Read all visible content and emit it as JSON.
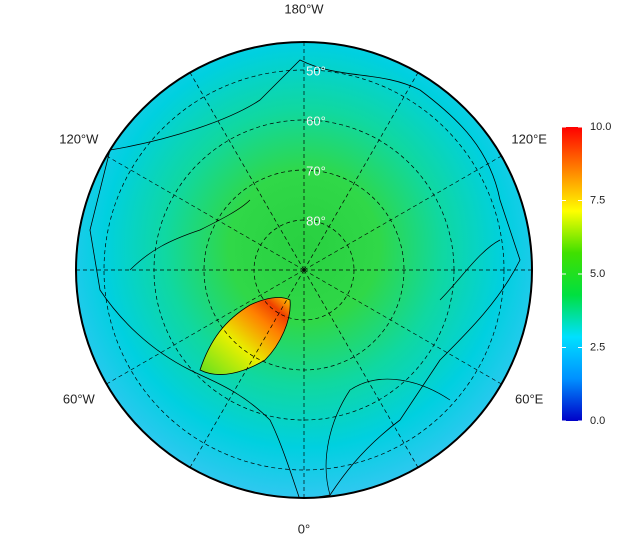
{
  "map": {
    "longitude_labels": [
      {
        "value": -180,
        "label": "180°W"
      },
      {
        "value": -120,
        "label": "120°W"
      },
      {
        "value": 120,
        "label": "120°E"
      },
      {
        "value": -60,
        "label": "60°W"
      },
      {
        "value": 60,
        "label": "60°E"
      },
      {
        "value": 0,
        "label": "0°"
      }
    ],
    "latitude_labels": [
      {
        "value": 50,
        "label": "50°"
      },
      {
        "value": 60,
        "label": "60°"
      },
      {
        "value": 70,
        "label": "70°"
      },
      {
        "value": 80,
        "label": "80°"
      }
    ]
  },
  "colorbar": {
    "range": [
      0,
      10
    ],
    "ticks": [
      {
        "value": 0,
        "label": "0.0"
      },
      {
        "value": 2.5,
        "label": "2.5"
      },
      {
        "value": 5,
        "label": "5.0"
      },
      {
        "value": 7.5,
        "label": "7.5"
      },
      {
        "value": 10,
        "label": "10.0"
      }
    ],
    "colors": [
      "#0000c8",
      "#0090ff",
      "#00e0ff",
      "#00e040",
      "#40e000",
      "#ffff00",
      "#ff8000",
      "#ff0000"
    ]
  }
}
